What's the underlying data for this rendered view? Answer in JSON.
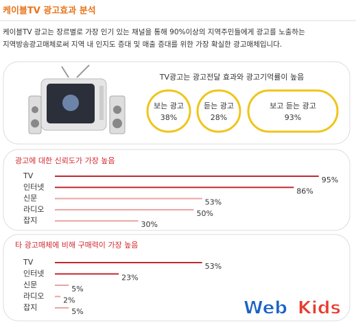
{
  "header": {
    "title": "케이블TV 광고효과 분석"
  },
  "intro": [
    "케이블TV 광고는 장르별로 가장 인기 있는 채널을 통해 90%이상의 지역주민들에게 광고를 노출하는",
    "지역방송광고매체로써 지역 내 인지도 증대 및 매출 증대를 위한 가장 확실한 광고매체입니다."
  ],
  "recall": {
    "title": "TV광고는 광고전달 효과와 광고기억률이 높음",
    "items": [
      {
        "label": "보는 광고",
        "value": "38%"
      },
      {
        "label": "듣는 광고",
        "value": "28%"
      },
      {
        "label": "보고 듣는 광고",
        "value": "93%"
      }
    ]
  },
  "chart_data": [
    {
      "type": "bar",
      "title": "광고에 대한 신뢰도가 가장 높음",
      "categories": [
        "TV",
        "인터넷",
        "신문",
        "라디오",
        "잡지"
      ],
      "values": [
        95,
        86,
        53,
        50,
        30
      ],
      "value_labels": [
        "95%",
        "86%",
        "53%",
        "50%",
        "30%"
      ],
      "colors": [
        "#c1272d",
        "#c1272d",
        "#eaa3a3",
        "#eaa3a3",
        "#eaa3a3"
      ],
      "xlim": [
        0,
        100
      ]
    },
    {
      "type": "bar",
      "title": "타 광고매체에 비해 구매력이 가장 높음",
      "categories": [
        "TV",
        "인터넷",
        "신문",
        "라디오",
        "잡지"
      ],
      "values": [
        53,
        23,
        5,
        2,
        5
      ],
      "value_labels": [
        "53%",
        "23%",
        "5%",
        "2%",
        "5%"
      ],
      "colors": [
        "#c1272d",
        "#c1272d",
        "#eaa3a3",
        "#eaa3a3",
        "#eaa3a3"
      ],
      "xlim": [
        0,
        100
      ]
    }
  ],
  "logo": {
    "web": "Web",
    "kids": "Kids"
  }
}
